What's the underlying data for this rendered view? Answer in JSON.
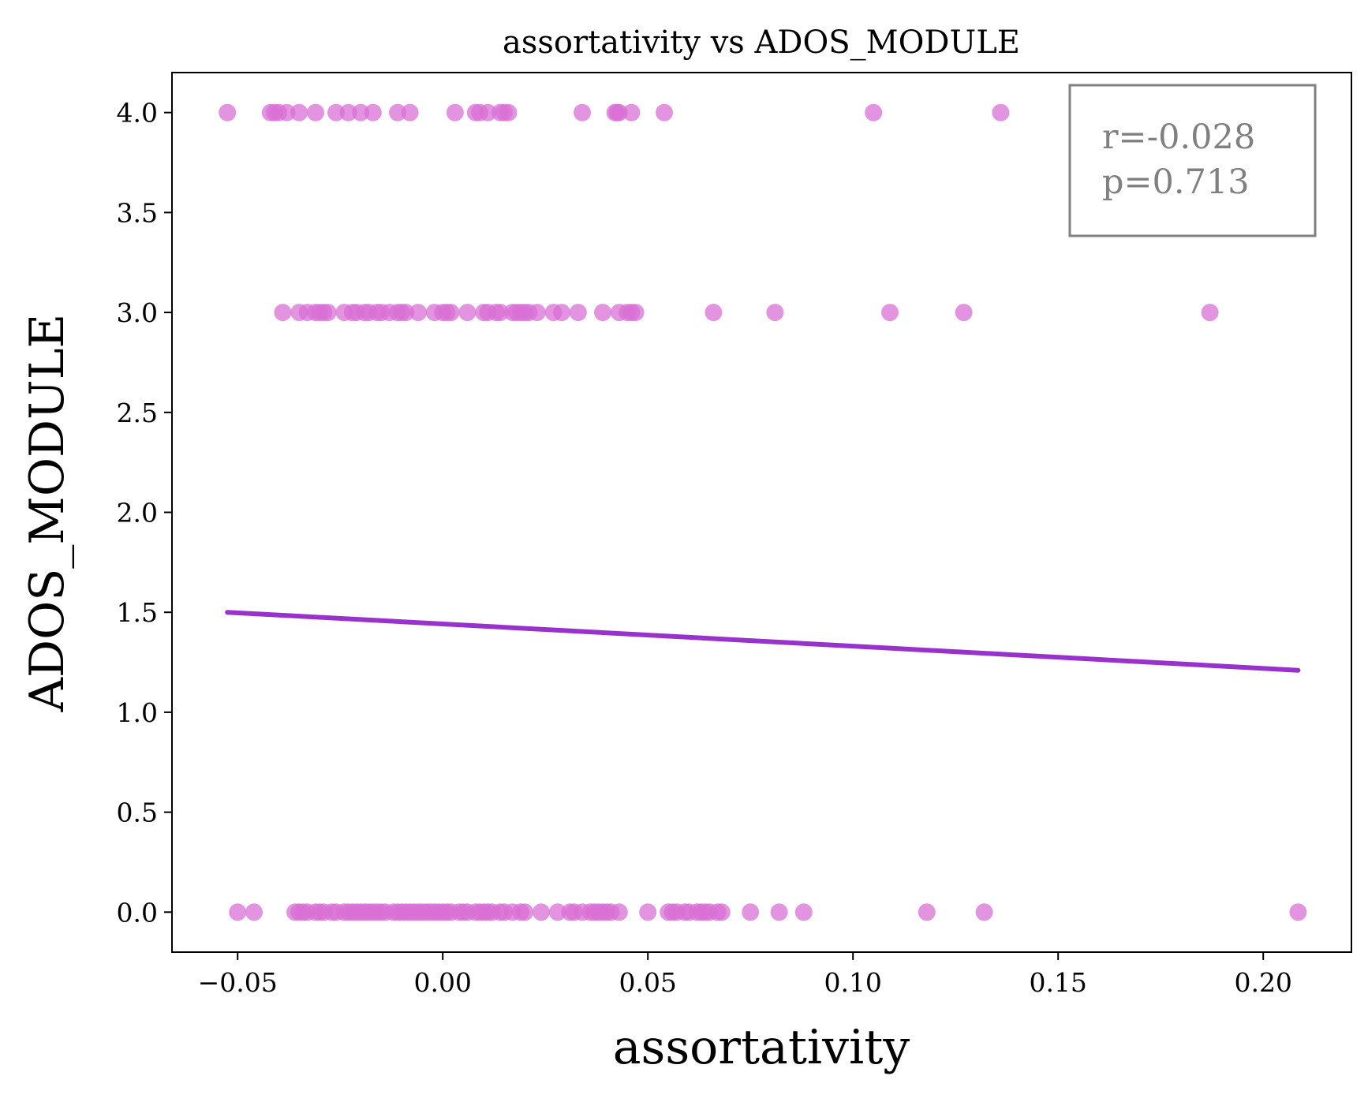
{
  "chart_data": {
    "type": "scatter",
    "title": "assortativity vs ADOS_MODULE",
    "xlabel": "assortativity",
    "ylabel": "ADOS_MODULE",
    "xlim": [
      -0.066,
      0.2215
    ],
    "ylim": [
      -0.2,
      4.2
    ],
    "xticks": [
      -0.05,
      0.0,
      0.05,
      0.1,
      0.15,
      0.2
    ],
    "xtick_labels": [
      "−0.05",
      "0.00",
      "0.05",
      "0.10",
      "0.15",
      "0.20"
    ],
    "yticks": [
      0.0,
      0.5,
      1.0,
      1.5,
      2.0,
      2.5,
      3.0,
      3.5,
      4.0
    ],
    "ytick_labels": [
      "0.0",
      "0.5",
      "1.0",
      "1.5",
      "2.0",
      "2.5",
      "3.0",
      "3.5",
      "4.0"
    ],
    "grid": false,
    "point_color": "#da70d6",
    "line_color": "#9932cc",
    "stats_box_color": "#808080",
    "stats": {
      "r_text": "r=-0.028",
      "p_text": "p=0.713",
      "placement": "top-right"
    },
    "regression_line": {
      "x": [
        -0.0525,
        0.2085
      ],
      "y": [
        1.5,
        1.21
      ]
    },
    "series": [
      {
        "x": [
          -0.0525,
          -0.042,
          -0.041,
          -0.04,
          -0.038,
          -0.035,
          -0.031,
          -0.026,
          -0.023,
          -0.02,
          -0.017,
          -0.011,
          -0.008,
          0.003,
          0.008,
          0.009,
          0.011,
          0.014,
          0.015,
          0.016,
          0.034,
          0.042,
          0.0425,
          0.043,
          0.046,
          0.054,
          0.105,
          0.136
        ],
        "y": [
          4,
          4,
          4,
          4,
          4,
          4,
          4,
          4,
          4,
          4,
          4,
          4,
          4,
          4,
          4,
          4,
          4,
          4,
          4,
          4,
          4,
          4,
          4,
          4,
          4,
          4,
          4,
          4
        ]
      },
      {
        "x": [
          -0.039,
          -0.035,
          -0.033,
          -0.031,
          -0.03,
          -0.029,
          -0.028,
          -0.024,
          -0.022,
          -0.021,
          -0.019,
          -0.018,
          -0.016,
          -0.015,
          -0.013,
          -0.011,
          -0.01,
          -0.009,
          -0.006,
          -0.002,
          0.0,
          0.001,
          0.002,
          0.006,
          0.01,
          0.011,
          0.013,
          0.014,
          0.017,
          0.018,
          0.019,
          0.02,
          0.021,
          0.023,
          0.027,
          0.029,
          0.033,
          0.039,
          0.043,
          0.045,
          0.046,
          0.047,
          0.066,
          0.081,
          0.109,
          0.127,
          0.187
        ],
        "y": [
          3,
          3,
          3,
          3,
          3,
          3,
          3,
          3,
          3,
          3,
          3,
          3,
          3,
          3,
          3,
          3,
          3,
          3,
          3,
          3,
          3,
          3,
          3,
          3,
          3,
          3,
          3,
          3,
          3,
          3,
          3,
          3,
          3,
          3,
          3,
          3,
          3,
          3,
          3,
          3,
          3,
          3,
          3,
          3,
          3,
          3,
          3
        ]
      },
      {
        "x": [
          -0.05,
          -0.046,
          -0.036,
          -0.035,
          -0.034,
          -0.033,
          -0.031,
          -0.03,
          -0.029,
          -0.027,
          -0.026,
          -0.024,
          -0.023,
          -0.022,
          -0.021,
          -0.02,
          -0.019,
          -0.018,
          -0.017,
          -0.016,
          -0.015,
          -0.014,
          -0.012,
          -0.011,
          -0.01,
          -0.009,
          -0.008,
          -0.007,
          -0.006,
          -0.005,
          -0.004,
          -0.003,
          -0.002,
          -0.001,
          0.0,
          0.001,
          0.002,
          0.004,
          0.005,
          0.006,
          0.008,
          0.009,
          0.01,
          0.011,
          0.012,
          0.014,
          0.015,
          0.017,
          0.019,
          0.02,
          0.024,
          0.028,
          0.031,
          0.032,
          0.034,
          0.036,
          0.037,
          0.038,
          0.039,
          0.04,
          0.041,
          0.043,
          0.05,
          0.055,
          0.056,
          0.057,
          0.059,
          0.06,
          0.062,
          0.063,
          0.064,
          0.065,
          0.067,
          0.068,
          0.075,
          0.082,
          0.088,
          0.118,
          0.132,
          0.2085
        ],
        "y": [
          0,
          0,
          0,
          0,
          0,
          0,
          0,
          0,
          0,
          0,
          0,
          0,
          0,
          0,
          0,
          0,
          0,
          0,
          0,
          0,
          0,
          0,
          0,
          0,
          0,
          0,
          0,
          0,
          0,
          0,
          0,
          0,
          0,
          0,
          0,
          0,
          0,
          0,
          0,
          0,
          0,
          0,
          0,
          0,
          0,
          0,
          0,
          0,
          0,
          0,
          0,
          0,
          0,
          0,
          0,
          0,
          0,
          0,
          0,
          0,
          0,
          0,
          0,
          0,
          0,
          0,
          0,
          0,
          0,
          0,
          0,
          0,
          0,
          0,
          0,
          0,
          0,
          0,
          0,
          0
        ]
      }
    ]
  }
}
